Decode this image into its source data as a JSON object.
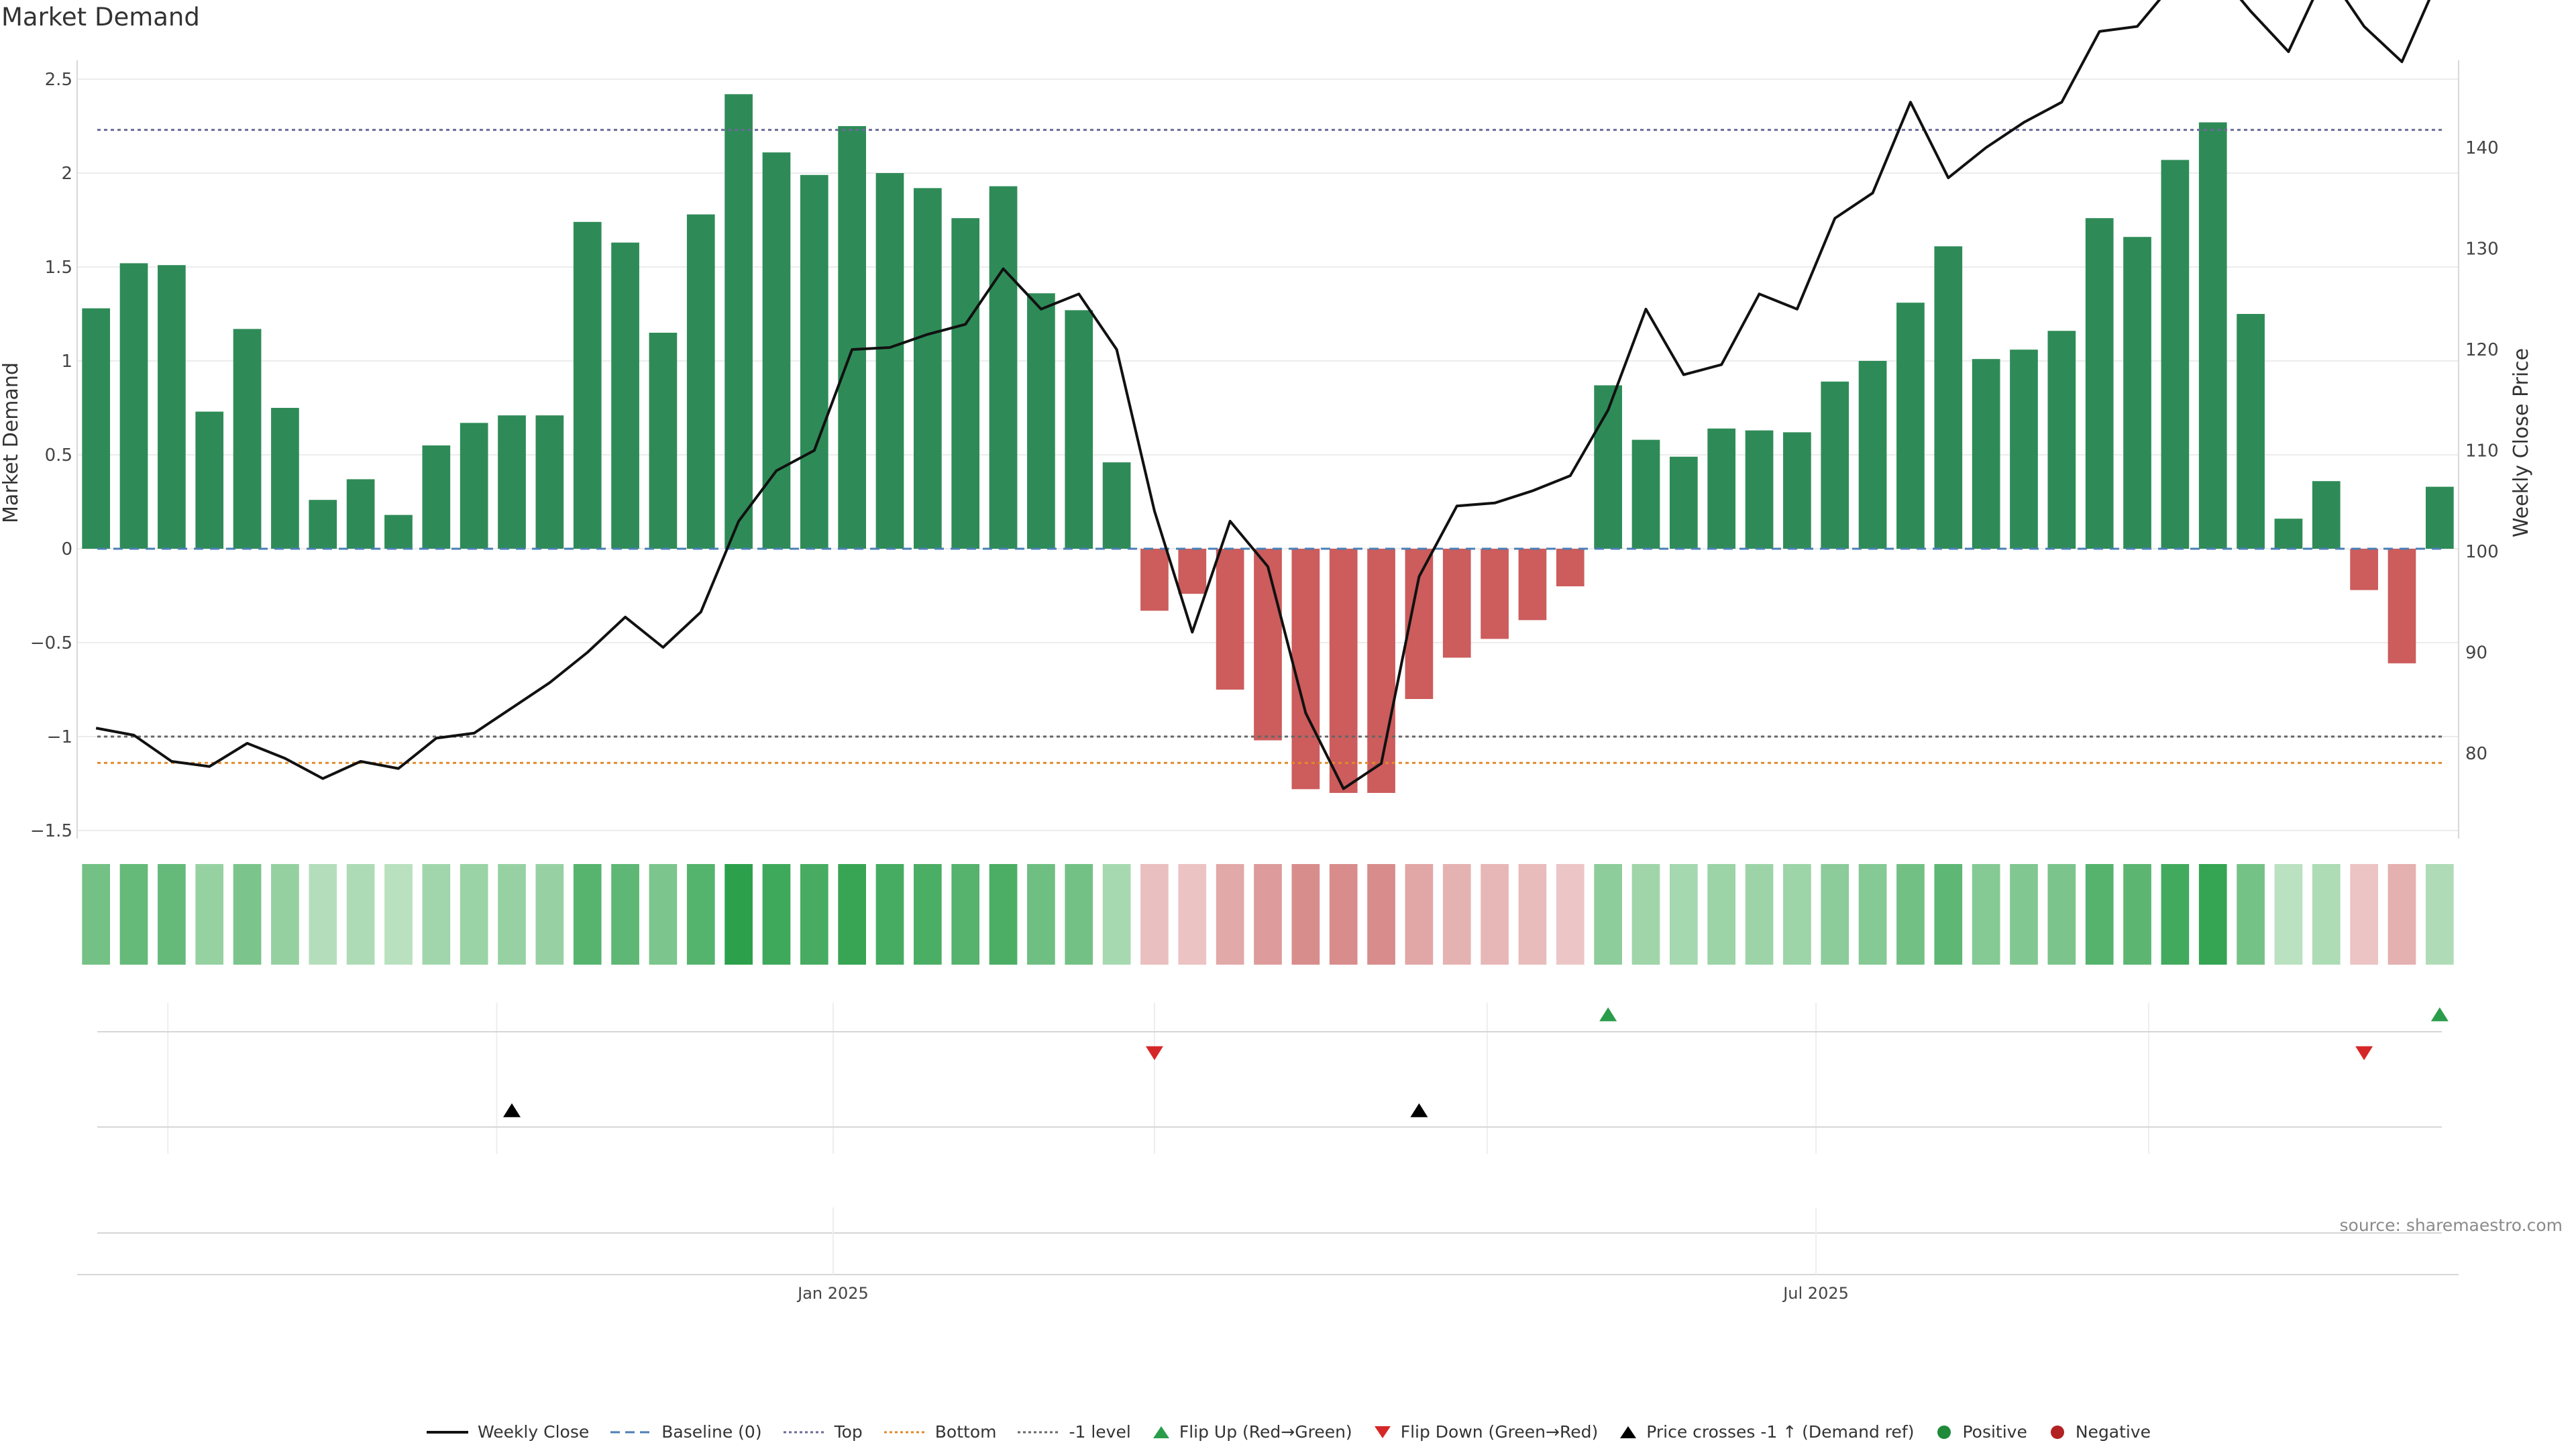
{
  "chart_data": {
    "type": "bar",
    "title": "Market Demand",
    "ylabel_left": "Market Demand",
    "ylabel_right": "Weekly Close Price",
    "ylim_left": [
      -1.5,
      2.5
    ],
    "ylim_right": [
      72,
      148
    ],
    "left_ticks": [
      2.5,
      2,
      1.5,
      1,
      0.5,
      0,
      -0.5,
      -1,
      -1.5
    ],
    "left_tick_labels": [
      "2.5",
      "2",
      "1.5",
      "1",
      "0.5",
      "0",
      "−0.5",
      "−1",
      "−1.5"
    ],
    "right_ticks": [
      140,
      130,
      120,
      110,
      100,
      90,
      80
    ],
    "right_tick_labels": [
      "140",
      "130",
      "120",
      "110",
      "100",
      "90",
      "80"
    ],
    "x_ticks": [
      {
        "index": 19.5,
        "label": "Jan 2025"
      },
      {
        "index": 45.5,
        "label": "Jul 2025"
      }
    ],
    "x_gridlines_event_panel": [
      1.9,
      10.6,
      19.5,
      28,
      36.8,
      45.5,
      54.3
    ],
    "reference_lines": {
      "top": 2.23,
      "bottom": -1.14,
      "minus_one": -1.0,
      "baseline": 0
    },
    "demand": [
      1.28,
      1.52,
      1.51,
      0.73,
      1.17,
      0.75,
      0.26,
      0.37,
      0.18,
      0.55,
      0.67,
      0.71,
      0.71,
      1.74,
      1.63,
      1.15,
      1.78,
      2.42,
      2.11,
      1.99,
      2.25,
      2.0,
      1.92,
      1.76,
      1.93,
      1.36,
      1.27,
      0.46,
      -0.33,
      -0.24,
      -0.75,
      -1.02,
      -1.28,
      -1.3,
      -1.3,
      -0.8,
      -0.58,
      -0.48,
      -0.38,
      -0.2,
      0.87,
      0.58,
      0.49,
      0.64,
      0.63,
      0.62,
      0.89,
      1.0,
      1.31,
      1.61,
      1.01,
      1.06,
      1.16,
      1.76,
      1.66,
      2.07,
      2.27,
      1.25,
      0.16,
      0.36,
      -0.22,
      -0.61,
      0.33
    ],
    "weekly_close": [
      82.5,
      81.8,
      79.2,
      78.7,
      81.0,
      79.5,
      77.5,
      79.2,
      78.5,
      81.5,
      82.0,
      84.5,
      87.0,
      90.0,
      93.5,
      90.5,
      94.0,
      103.0,
      108.0,
      110.0,
      120.0,
      120.2,
      121.5,
      122.5,
      128.0,
      124.0,
      125.5,
      120.0,
      104.0,
      92.0,
      103.0,
      98.5,
      84.0,
      76.5,
      79.0,
      97.5,
      104.5,
      104.8,
      106.0,
      107.5,
      114.0,
      124.0,
      117.5,
      118.5,
      125.5,
      124.0,
      133.0,
      135.5,
      144.5,
      137.0,
      140.0,
      142.5,
      144.5,
      151.5,
      152.0,
      156.5,
      158.0,
      153.5,
      149.5,
      157.5,
      152.0,
      148.5,
      157.0
    ],
    "flip_up": [
      40,
      62
    ],
    "flip_down": [
      28,
      60
    ],
    "price_crosses": [
      11,
      35
    ],
    "legend": [
      {
        "label": "Weekly Close",
        "kind": "solid-line",
        "color": "#111111"
      },
      {
        "label": "Baseline (0)",
        "kind": "dashed-line",
        "color": "#4a7fb5"
      },
      {
        "label": "Top",
        "kind": "dotted-line",
        "color": "#6a6a9a"
      },
      {
        "label": "Bottom",
        "kind": "dotted-line",
        "color": "#e08a2a"
      },
      {
        "label": "-1 level",
        "kind": "dotted-line",
        "color": "#666666"
      },
      {
        "label": "Flip Up (Red→Green)",
        "kind": "triangle-up",
        "color": "#2a9d4a"
      },
      {
        "label": "Flip Down (Green→Red)",
        "kind": "triangle-down",
        "color": "#d62728"
      },
      {
        "label": "Price crosses -1 ↑ (Demand ref)",
        "kind": "triangle-up",
        "color": "#000000"
      },
      {
        "label": "Positive",
        "kind": "dot",
        "color": "#1f8a3a"
      },
      {
        "label": "Negative",
        "kind": "dot",
        "color": "#b22222"
      }
    ],
    "colors": {
      "positive_bar": "#2e8b57",
      "negative_bar": "#cd5c5c"
    }
  },
  "source_note": "source: sharemaestro.com"
}
